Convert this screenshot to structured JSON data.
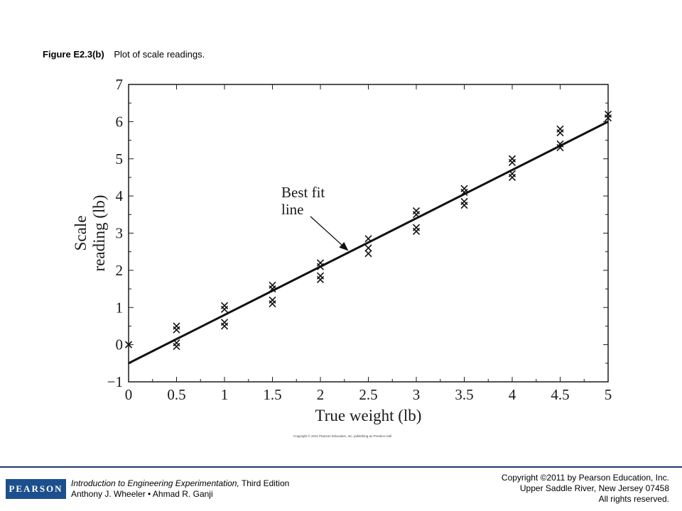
{
  "caption": {
    "label": "Figure E2.3(b)",
    "text": "Plot of scale readings."
  },
  "chart_data": {
    "type": "scatter",
    "title": "",
    "xlabel": "True weight (lb)",
    "ylabel_line1": "Scale",
    "ylabel_line2": "reading (lb)",
    "xlim": [
      0,
      5
    ],
    "ylim": [
      -1,
      7
    ],
    "xticks": [
      "0",
      "0.5",
      "1",
      "1.5",
      "2",
      "2.5",
      "3",
      "3.5",
      "4",
      "4.5",
      "5"
    ],
    "yticks": [
      "−1",
      "0",
      "1",
      "2",
      "3",
      "4",
      "5",
      "6",
      "7"
    ],
    "grid": false,
    "series": [
      {
        "marker": "x",
        "points": [
          [
            0,
            0.0
          ],
          [
            0.5,
            -0.05
          ],
          [
            0.5,
            0.05
          ],
          [
            0.5,
            0.4
          ],
          [
            0.5,
            0.5
          ],
          [
            1,
            0.5
          ],
          [
            1,
            0.6
          ],
          [
            1,
            0.95
          ],
          [
            1,
            1.05
          ],
          [
            1.5,
            1.1
          ],
          [
            1.5,
            1.2
          ],
          [
            1.5,
            1.5
          ],
          [
            1.5,
            1.6
          ],
          [
            2,
            1.75
          ],
          [
            2,
            1.85
          ],
          [
            2,
            2.1
          ],
          [
            2,
            2.2
          ],
          [
            2.5,
            2.45
          ],
          [
            2.5,
            2.6
          ],
          [
            2.5,
            2.85
          ],
          [
            3,
            3.05
          ],
          [
            3,
            3.15
          ],
          [
            3,
            3.5
          ],
          [
            3,
            3.6
          ],
          [
            3.5,
            3.75
          ],
          [
            3.5,
            3.85
          ],
          [
            3.5,
            4.1
          ],
          [
            3.5,
            4.2
          ],
          [
            4,
            4.5
          ],
          [
            4,
            4.6
          ],
          [
            4,
            4.9
          ],
          [
            4,
            5.0
          ],
          [
            4.5,
            5.3
          ],
          [
            4.5,
            5.4
          ],
          [
            4.5,
            5.7
          ],
          [
            4.5,
            5.8
          ],
          [
            5,
            6.1
          ],
          [
            5,
            6.2
          ]
        ]
      }
    ],
    "fit_line": {
      "x": [
        0,
        5
      ],
      "y": [
        -0.5,
        6.0
      ]
    },
    "annotation": {
      "text_line1": "Best fit",
      "text_line2": "line",
      "arrow_to": [
        2.3,
        2.5
      ]
    },
    "source_note": "Copyright © 2011 Pearson Education, Inc. publishing as Prentice Hall"
  },
  "footer": {
    "logo_text": "PEARSON",
    "book_title": "Introduction to Engineering Experimentation,",
    "edition": " Third Edition",
    "authors": "Anthony J. Wheeler • Ahmad R. Ganji",
    "copyright_line1": "Copyright ©2011 by Pearson Education, Inc.",
    "copyright_line2": "Upper Saddle River, New Jersey 07458",
    "copyright_line3": "All rights reserved."
  }
}
